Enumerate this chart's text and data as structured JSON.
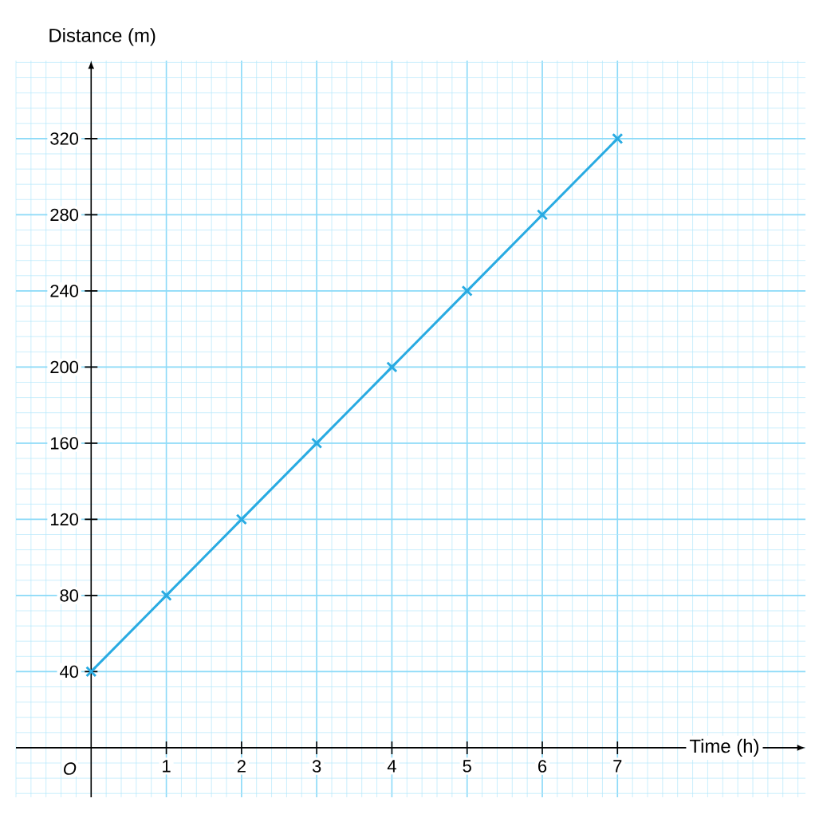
{
  "chart_data": {
    "type": "line",
    "xlabel": "Time (h)",
    "ylabel": "Distance (m)",
    "x": [
      0,
      1,
      2,
      3,
      4,
      5,
      6,
      7
    ],
    "series": [
      {
        "color": "#29abe2",
        "values": [
          40,
          80,
          120,
          160,
          200,
          240,
          280,
          320
        ]
      }
    ],
    "xlim": [
      -1,
      9.5
    ],
    "ylim": [
      -26,
      361
    ],
    "xticks": [
      1,
      2,
      3,
      4,
      5,
      6,
      7
    ],
    "yticks": [
      40,
      80,
      120,
      160,
      200,
      240,
      280,
      320
    ],
    "grid": true,
    "marker": "cross",
    "line_style": "solid",
    "annotations": [
      "O"
    ]
  }
}
